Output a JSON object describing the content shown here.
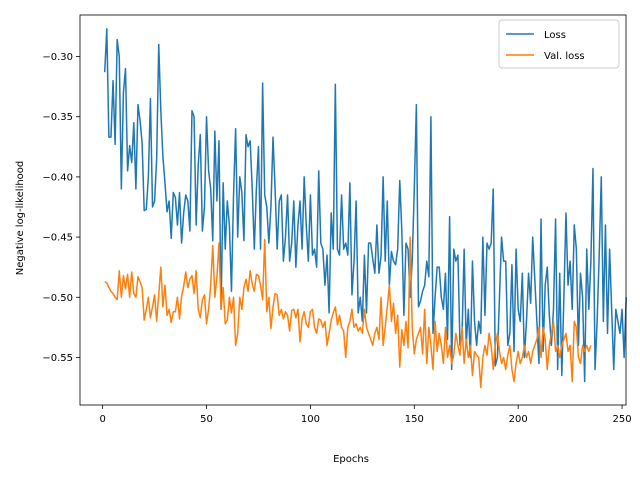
{
  "chart_data": {
    "type": "line",
    "xlabel": "Epochs",
    "ylabel": "Negative log-likelihood",
    "xlim": [
      -10.9,
      251.9
    ],
    "ylim": [
      -0.5895,
      -0.2655
    ],
    "xticks": [
      0,
      50,
      100,
      150,
      200,
      250
    ],
    "yticks": [
      -0.55,
      -0.5,
      -0.45,
      -0.4,
      -0.35,
      -0.3
    ],
    "ytick_labels": [
      "−0.55",
      "−0.50",
      "−0.45",
      "−0.40",
      "−0.35",
      "−0.30"
    ],
    "xtick_labels": [
      "0",
      "50",
      "100",
      "150",
      "200",
      "250"
    ],
    "grid": false,
    "legend_position": "top-right",
    "x_start": 1,
    "series": [
      {
        "name": "Loss",
        "color": "#1f77b4",
        "values": [
          -0.313,
          -0.277,
          -0.367,
          -0.367,
          -0.32,
          -0.373,
          -0.286,
          -0.3,
          -0.41,
          -0.33,
          -0.31,
          -0.395,
          -0.374,
          -0.388,
          -0.355,
          -0.41,
          -0.34,
          -0.353,
          -0.372,
          -0.428,
          -0.427,
          -0.4,
          -0.335,
          -0.425,
          -0.42,
          -0.385,
          -0.29,
          -0.345,
          -0.383,
          -0.405,
          -0.429,
          -0.42,
          -0.451,
          -0.413,
          -0.417,
          -0.44,
          -0.413,
          -0.455,
          -0.43,
          -0.415,
          -0.42,
          -0.445,
          -0.345,
          -0.35,
          -0.44,
          -0.39,
          -0.365,
          -0.445,
          -0.425,
          -0.35,
          -0.395,
          -0.41,
          -0.453,
          -0.362,
          -0.42,
          -0.37,
          -0.51,
          -0.405,
          -0.46,
          -0.42,
          -0.44,
          -0.495,
          -0.415,
          -0.36,
          -0.45,
          -0.4,
          -0.413,
          -0.453,
          -0.365,
          -0.375,
          -0.37,
          -0.41,
          -0.46,
          -0.41,
          -0.375,
          -0.46,
          -0.322,
          -0.415,
          -0.425,
          -0.455,
          -0.425,
          -0.367,
          -0.41,
          -0.46,
          -0.42,
          -0.415,
          -0.47,
          -0.45,
          -0.415,
          -0.47,
          -0.455,
          -0.42,
          -0.475,
          -0.44,
          -0.42,
          -0.46,
          -0.4,
          -0.44,
          -0.47,
          -0.415,
          -0.465,
          -0.46,
          -0.475,
          -0.395,
          -0.455,
          -0.46,
          -0.49,
          -0.465,
          -0.513,
          -0.43,
          -0.46,
          -0.323,
          -0.46,
          -0.465,
          -0.415,
          -0.46,
          -0.455,
          -0.465,
          -0.405,
          -0.498,
          -0.47,
          -0.42,
          -0.513,
          -0.5,
          -0.52,
          -0.465,
          -0.513,
          -0.455,
          -0.455,
          -0.468,
          -0.48,
          -0.44,
          -0.48,
          -0.466,
          -0.4,
          -0.47,
          -0.42,
          -0.49,
          -0.462,
          -0.47,
          -0.473,
          -0.46,
          -0.403,
          -0.445,
          -0.515,
          -0.455,
          -0.46,
          -0.5,
          -0.47,
          -0.41,
          -0.34,
          -0.508,
          -0.503,
          -0.495,
          -0.49,
          -0.47,
          -0.483,
          -0.35,
          -0.53,
          -0.5,
          -0.475,
          -0.475,
          -0.5,
          -0.51,
          -0.48,
          -0.535,
          -0.433,
          -0.56,
          -0.46,
          -0.47,
          -0.465,
          -0.54,
          -0.53,
          -0.46,
          -0.54,
          -0.51,
          -0.55,
          -0.47,
          -0.52,
          -0.54,
          -0.52,
          -0.53,
          -0.45,
          -0.515,
          -0.455,
          -0.46,
          -0.455,
          -0.41,
          -0.557,
          -0.55,
          -0.5,
          -0.45,
          -0.47,
          -0.47,
          -0.54,
          -0.53,
          -0.473,
          -0.545,
          -0.46,
          -0.51,
          -0.52,
          -0.48,
          -0.55,
          -0.52,
          -0.48,
          -0.505,
          -0.45,
          -0.485,
          -0.52,
          -0.555,
          -0.435,
          -0.545,
          -0.49,
          -0.475,
          -0.515,
          -0.54,
          -0.51,
          -0.435,
          -0.56,
          -0.48,
          -0.565,
          -0.5,
          -0.43,
          -0.49,
          -0.47,
          -0.51,
          -0.44,
          -0.46,
          -0.54,
          -0.48,
          -0.5,
          -0.57,
          -0.46,
          -0.51,
          -0.47,
          -0.393,
          -0.56,
          -0.52,
          -0.465,
          -0.4,
          -0.52,
          -0.44,
          -0.53,
          -0.46,
          -0.51,
          -0.56,
          -0.51,
          -0.52,
          -0.53,
          -0.51,
          -0.55,
          -0.5
        ]
      },
      {
        "name": "Val. loss",
        "color": "#ff7f0e",
        "values": [
          -0.487,
          -0.488,
          -0.492,
          -0.495,
          -0.497,
          -0.5,
          -0.502,
          -0.478,
          -0.5,
          -0.482,
          -0.493,
          -0.481,
          -0.5,
          -0.479,
          -0.497,
          -0.5,
          -0.483,
          -0.487,
          -0.492,
          -0.519,
          -0.51,
          -0.5,
          -0.517,
          -0.508,
          -0.498,
          -0.52,
          -0.498,
          -0.475,
          -0.508,
          -0.49,
          -0.515,
          -0.51,
          -0.521,
          -0.512,
          -0.512,
          -0.5,
          -0.518,
          -0.499,
          -0.491,
          -0.479,
          -0.492,
          -0.485,
          -0.482,
          -0.497,
          -0.478,
          -0.51,
          -0.517,
          -0.502,
          -0.498,
          -0.522,
          -0.51,
          -0.49,
          -0.457,
          -0.5,
          -0.483,
          -0.455,
          -0.51,
          -0.492,
          -0.522,
          -0.519,
          -0.5,
          -0.513,
          -0.5,
          -0.54,
          -0.53,
          -0.5,
          -0.51,
          -0.492,
          -0.485,
          -0.495,
          -0.478,
          -0.489,
          -0.495,
          -0.481,
          -0.482,
          -0.49,
          -0.502,
          -0.452,
          -0.512,
          -0.5,
          -0.526,
          -0.508,
          -0.497,
          -0.498,
          -0.515,
          -0.51,
          -0.518,
          -0.512,
          -0.515,
          -0.528,
          -0.511,
          -0.51,
          -0.517,
          -0.51,
          -0.537,
          -0.518,
          -0.512,
          -0.522,
          -0.525,
          -0.512,
          -0.51,
          -0.525,
          -0.53,
          -0.518,
          -0.519,
          -0.525,
          -0.52,
          -0.54,
          -0.53,
          -0.519,
          -0.513,
          -0.508,
          -0.523,
          -0.515,
          -0.525,
          -0.528,
          -0.55,
          -0.525,
          -0.52,
          -0.51,
          -0.525,
          -0.522,
          -0.528,
          -0.525,
          -0.53,
          -0.51,
          -0.525,
          -0.53,
          -0.535,
          -0.54,
          -0.53,
          -0.525,
          -0.535,
          -0.5,
          -0.54,
          -0.525,
          -0.508,
          -0.49,
          -0.52,
          -0.505,
          -0.53,
          -0.515,
          -0.558,
          -0.527,
          -0.54,
          -0.52,
          -0.542,
          -0.45,
          -0.525,
          -0.547,
          -0.535,
          -0.53,
          -0.525,
          -0.547,
          -0.51,
          -0.555,
          -0.525,
          -0.54,
          -0.56,
          -0.52,
          -0.545,
          -0.53,
          -0.54,
          -0.555,
          -0.525,
          -0.55,
          -0.54,
          -0.555,
          -0.548,
          -0.53,
          -0.54,
          -0.548,
          -0.525,
          -0.555,
          -0.535,
          -0.55,
          -0.54,
          -0.565,
          -0.545,
          -0.548,
          -0.55,
          -0.575,
          -0.55,
          -0.54,
          -0.548,
          -0.53,
          -0.54,
          -0.56,
          -0.54,
          -0.53,
          -0.545,
          -0.555,
          -0.55,
          -0.56,
          -0.548,
          -0.54,
          -0.56,
          -0.57,
          -0.555,
          -0.545,
          -0.555,
          -0.55,
          -0.54,
          -0.55,
          -0.545,
          -0.555,
          -0.545,
          -0.54,
          -0.535,
          -0.525,
          -0.55,
          -0.525,
          -0.535,
          -0.56,
          -0.54,
          -0.53,
          -0.52,
          -0.545,
          -0.54,
          -0.55,
          -0.54,
          -0.535,
          -0.53,
          -0.545,
          -0.54,
          -0.57,
          -0.52,
          -0.525,
          -0.55,
          -0.555,
          -0.54,
          -0.545,
          -0.54,
          -0.545,
          -0.54
        ]
      }
    ]
  }
}
